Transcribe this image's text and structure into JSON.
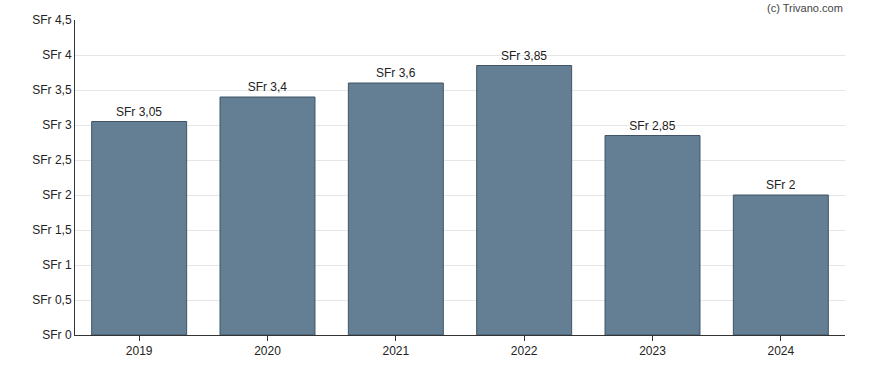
{
  "chart_data": {
    "type": "bar",
    "categories": [
      "2019",
      "2020",
      "2021",
      "2022",
      "2023",
      "2024"
    ],
    "values": [
      3.05,
      3.4,
      3.6,
      3.85,
      2.85,
      2
    ],
    "value_labels": [
      "SFr 3,05",
      "SFr 3,4",
      "SFr 3,6",
      "SFr 3,85",
      "SFr 2,85",
      "SFr 2"
    ],
    "data_labels": true,
    "color": "#647f94",
    "ylim": [
      0,
      4.5
    ],
    "yticks": [
      {
        "value": 0,
        "label": "SFr 0"
      },
      {
        "value": 0.5,
        "label": "SFr 0,5"
      },
      {
        "value": 1,
        "label": "SFr 1"
      },
      {
        "value": 1.5,
        "label": "SFr 1,5"
      },
      {
        "value": 2,
        "label": "SFr 2"
      },
      {
        "value": 2.5,
        "label": "SFr 2,5"
      },
      {
        "value": 3,
        "label": "SFr 3"
      },
      {
        "value": 3.5,
        "label": "SFr 3,5"
      },
      {
        "value": 4,
        "label": "SFr 4"
      },
      {
        "value": 4.5,
        "label": "SFr 4,5"
      }
    ],
    "grid": true,
    "annotations": [
      "(c) Trivano.com"
    ]
  }
}
